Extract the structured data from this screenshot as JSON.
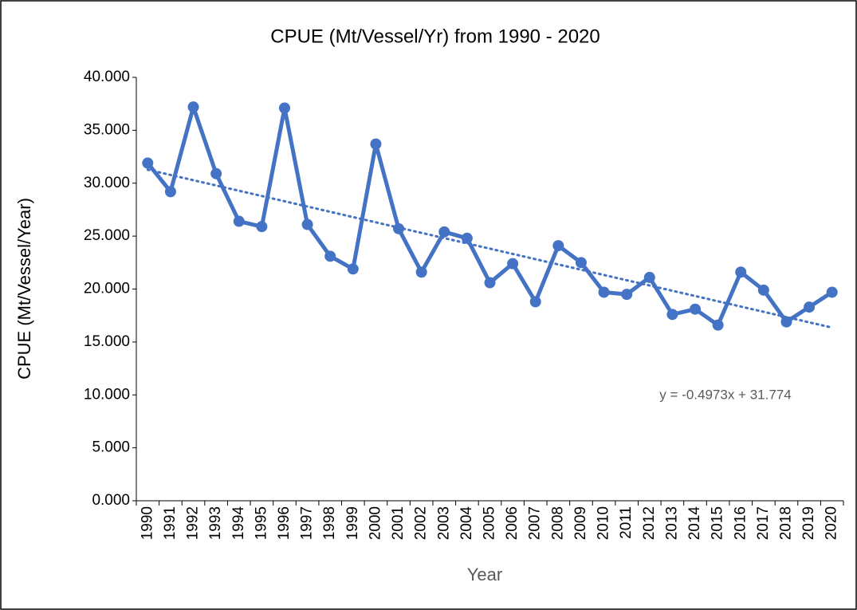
{
  "chart_data": {
    "type": "line",
    "title": "CPUE (Mt/Vessel/Yr) from 1990 - 2020",
    "x_label": "Year",
    "y_label": "CPUE (Mt/Vessel/Year)",
    "categories": [
      "1990",
      "1991",
      "1992",
      "1993",
      "1994",
      "1995",
      "1996",
      "1997",
      "1998",
      "1999",
      "2000",
      "2001",
      "2002",
      "2003",
      "2004",
      "2005",
      "2006",
      "2007",
      "2008",
      "2009",
      "2010",
      "2011",
      "2012",
      "2013",
      "2014",
      "2015",
      "2016",
      "2017",
      "2018",
      "2019",
      "2020"
    ],
    "series": [
      {
        "name": "CPUE",
        "color": "#4472c4",
        "values": [
          31.9,
          29.2,
          37.2,
          30.9,
          26.4,
          25.9,
          37.1,
          26.1,
          23.1,
          21.9,
          33.7,
          25.7,
          21.6,
          25.4,
          24.8,
          20.6,
          22.4,
          18.8,
          24.1,
          22.5,
          19.7,
          19.5,
          21.1,
          17.6,
          18.1,
          16.6,
          21.6,
          19.9,
          16.9,
          18.3,
          19.7
        ]
      }
    ],
    "trendline": {
      "label": "y = -0.4973x + 31.774",
      "slope": -0.4973,
      "intercept": 31.774
    },
    "ylim": [
      0,
      40
    ],
    "yticks": [
      {
        "value": 0,
        "label": "0.000"
      },
      {
        "value": 5,
        "label": "5.000"
      },
      {
        "value": 10,
        "label": "10.000"
      },
      {
        "value": 15,
        "label": "15.000"
      },
      {
        "value": 20,
        "label": "20.000"
      },
      {
        "value": 25,
        "label": "25.000"
      },
      {
        "value": 30,
        "label": "30.000"
      },
      {
        "value": 35,
        "label": "35.000"
      },
      {
        "value": 40,
        "label": "40.000"
      }
    ],
    "grid": false
  }
}
